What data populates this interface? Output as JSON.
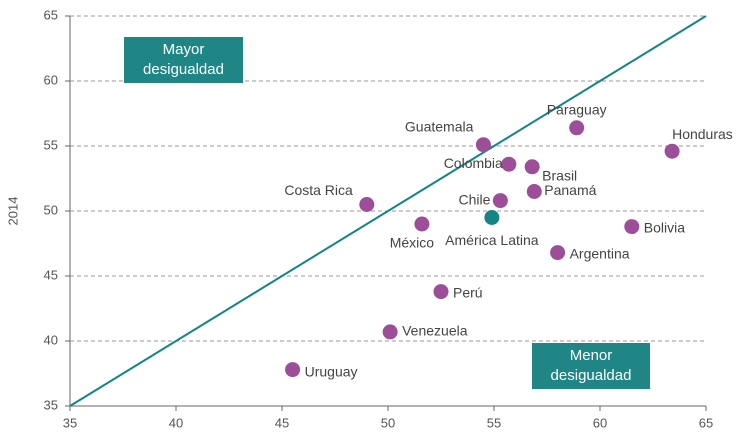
{
  "chart_data": {
    "type": "scatter",
    "y_label": "2014",
    "labels": [
      "Guatemala",
      "Paraguay",
      "Honduras",
      "Colombia",
      "Brasil",
      "Panamá",
      "Chile",
      "Costa Rica",
      "México",
      "América Latina",
      "Bolivia",
      "Argentina",
      "Perú",
      "Venezuela",
      "Uruguay"
    ],
    "x": [
      54.5,
      58.9,
      63.4,
      55.7,
      56.8,
      56.9,
      55.3,
      49.0,
      51.6,
      54.9,
      61.5,
      58.0,
      52.5,
      50.1,
      45.5
    ],
    "values": [
      55.1,
      56.4,
      54.6,
      53.6,
      53.4,
      51.5,
      50.8,
      50.5,
      49.0,
      49.5,
      48.8,
      46.8,
      43.8,
      40.7,
      37.8
    ],
    "colors": [
      "#9c4f98",
      "#9c4f98",
      "#9c4f98",
      "#9c4f98",
      "#9c4f98",
      "#9c4f98",
      "#9c4f98",
      "#9c4f98",
      "#9c4f98",
      "#138585",
      "#9c4f98",
      "#9c4f98",
      "#9c4f98",
      "#9c4f98",
      "#9c4f98"
    ],
    "line_color": "#138585",
    "annotations": [
      "Mayor desigualdad",
      "Menor desigualdad"
    ],
    "xlim": [
      35,
      65
    ],
    "xticks": [
      35,
      40,
      45,
      50,
      55,
      60,
      65
    ],
    "ylim": [
      35,
      65
    ],
    "yticks": [
      35,
      40,
      45,
      50,
      55,
      60,
      65
    ],
    "grid": true
  }
}
